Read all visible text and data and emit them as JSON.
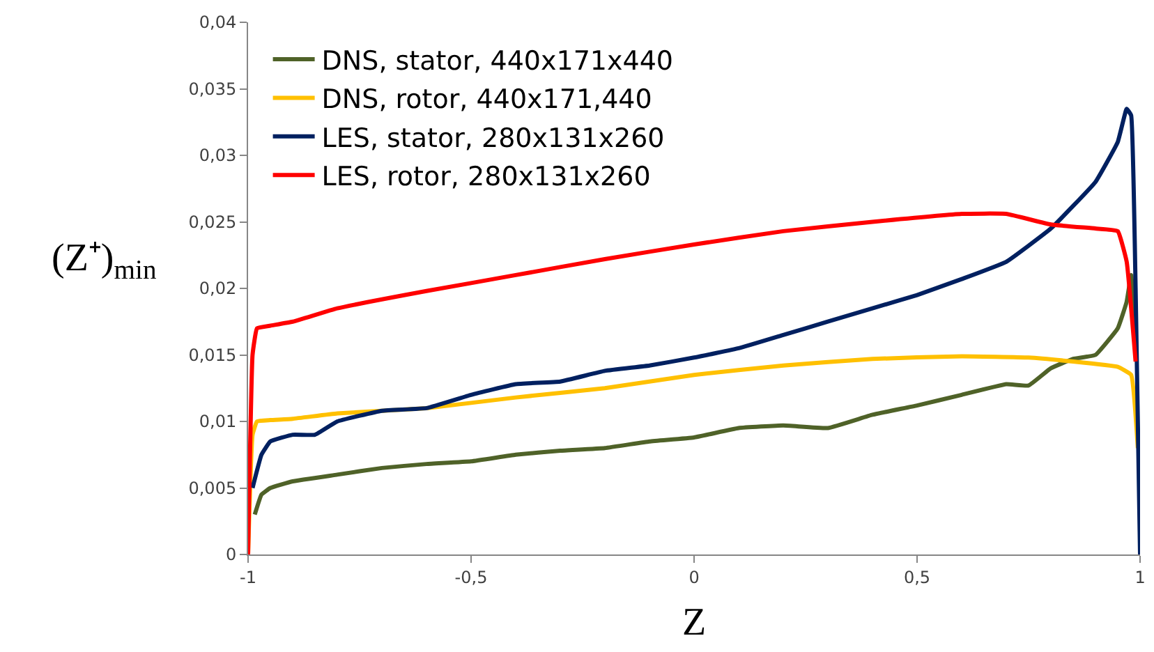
{
  "chart_data": {
    "type": "line",
    "xlabel": "Z",
    "ylabel": "(Z⁺)$_{min}$",
    "xlim": [
      -1,
      1
    ],
    "xticks": [
      {
        "value": -1,
        "label": "-1"
      },
      {
        "value": -0.5,
        "label": "-0,5"
      },
      {
        "value": 0,
        "label": "0"
      },
      {
        "value": 0.5,
        "label": "0,5"
      },
      {
        "value": 1,
        "label": "1"
      }
    ],
    "ylim": [
      0,
      0.04
    ],
    "yticks": [
      {
        "value": 0,
        "label": "0"
      },
      {
        "value": 0.005,
        "label": "0,005"
      },
      {
        "value": 0.01,
        "label": "0,01"
      },
      {
        "value": 0.015,
        "label": "0,015"
      },
      {
        "value": 0.02,
        "label": "0,02"
      },
      {
        "value": 0.025,
        "label": "0,025"
      },
      {
        "value": 0.03,
        "label": "0,03"
      },
      {
        "value": 0.035,
        "label": "0,035"
      },
      {
        "value": 0.04,
        "label": "0,04"
      }
    ],
    "legend": "top left",
    "marker": "none",
    "line_style": "solid",
    "series": [
      {
        "name": "DNS, stator, 440x171x440",
        "color": "#4f6228",
        "x": [
          -0.985,
          -0.97,
          -0.95,
          -0.9,
          -0.8,
          -0.7,
          -0.6,
          -0.5,
          -0.4,
          -0.3,
          -0.2,
          -0.1,
          0,
          0.1,
          0.2,
          0.3,
          0.4,
          0.5,
          0.6,
          0.7,
          0.75,
          0.8,
          0.85,
          0.9,
          0.95,
          0.97,
          0.98,
          0.99
        ],
        "values": [
          0.003,
          0.0045,
          0.005,
          0.0055,
          0.006,
          0.0065,
          0.0068,
          0.007,
          0.0075,
          0.0078,
          0.008,
          0.0085,
          0.0088,
          0.0095,
          0.0097,
          0.0095,
          0.0105,
          0.0112,
          0.012,
          0.0128,
          0.0127,
          0.014,
          0.0147,
          0.015,
          0.017,
          0.019,
          0.021,
          0.016
        ]
      },
      {
        "name": "DNS, rotor, 440x171,440",
        "color": "#ffc000",
        "x": [
          -1,
          -0.99,
          -0.98,
          -0.95,
          -0.9,
          -0.8,
          -0.6,
          -0.4,
          -0.2,
          0,
          0.2,
          0.4,
          0.6,
          0.75,
          0.85,
          0.95,
          0.98,
          0.995
        ],
        "values": [
          0,
          0.009,
          0.01,
          0.0101,
          0.0102,
          0.0106,
          0.011,
          0.0118,
          0.0125,
          0.0135,
          0.0142,
          0.0147,
          0.0149,
          0.0148,
          0.0145,
          0.0141,
          0.0135,
          0.008
        ]
      },
      {
        "name": "LES, stator, 280x131x260",
        "color": "#002060",
        "x": [
          -0.99,
          -0.97,
          -0.95,
          -0.9,
          -0.85,
          -0.8,
          -0.7,
          -0.6,
          -0.5,
          -0.4,
          -0.3,
          -0.2,
          -0.1,
          0,
          0.1,
          0.2,
          0.3,
          0.4,
          0.5,
          0.6,
          0.7,
          0.8,
          0.9,
          0.95,
          0.97,
          0.98,
          0.99,
          1
        ],
        "values": [
          0.005,
          0.0075,
          0.0085,
          0.009,
          0.009,
          0.01,
          0.0108,
          0.011,
          0.012,
          0.0128,
          0.013,
          0.0138,
          0.0142,
          0.0148,
          0.0155,
          0.0165,
          0.0175,
          0.0185,
          0.0195,
          0.0207,
          0.022,
          0.0245,
          0.028,
          0.031,
          0.0335,
          0.033,
          0.02,
          0
        ]
      },
      {
        "name": "LES, rotor, 280x131x260",
        "color": "#ff0000",
        "x": [
          -1,
          -0.99,
          -0.98,
          -0.95,
          -0.9,
          -0.8,
          -0.6,
          -0.4,
          -0.2,
          0,
          0.2,
          0.4,
          0.6,
          0.7,
          0.8,
          0.9,
          0.95,
          0.97,
          0.99
        ],
        "values": [
          0,
          0.015,
          0.017,
          0.0172,
          0.0175,
          0.0185,
          0.0198,
          0.021,
          0.0222,
          0.0233,
          0.0243,
          0.025,
          0.0256,
          0.0256,
          0.0248,
          0.0245,
          0.0243,
          0.022,
          0.0145
        ]
      }
    ]
  }
}
